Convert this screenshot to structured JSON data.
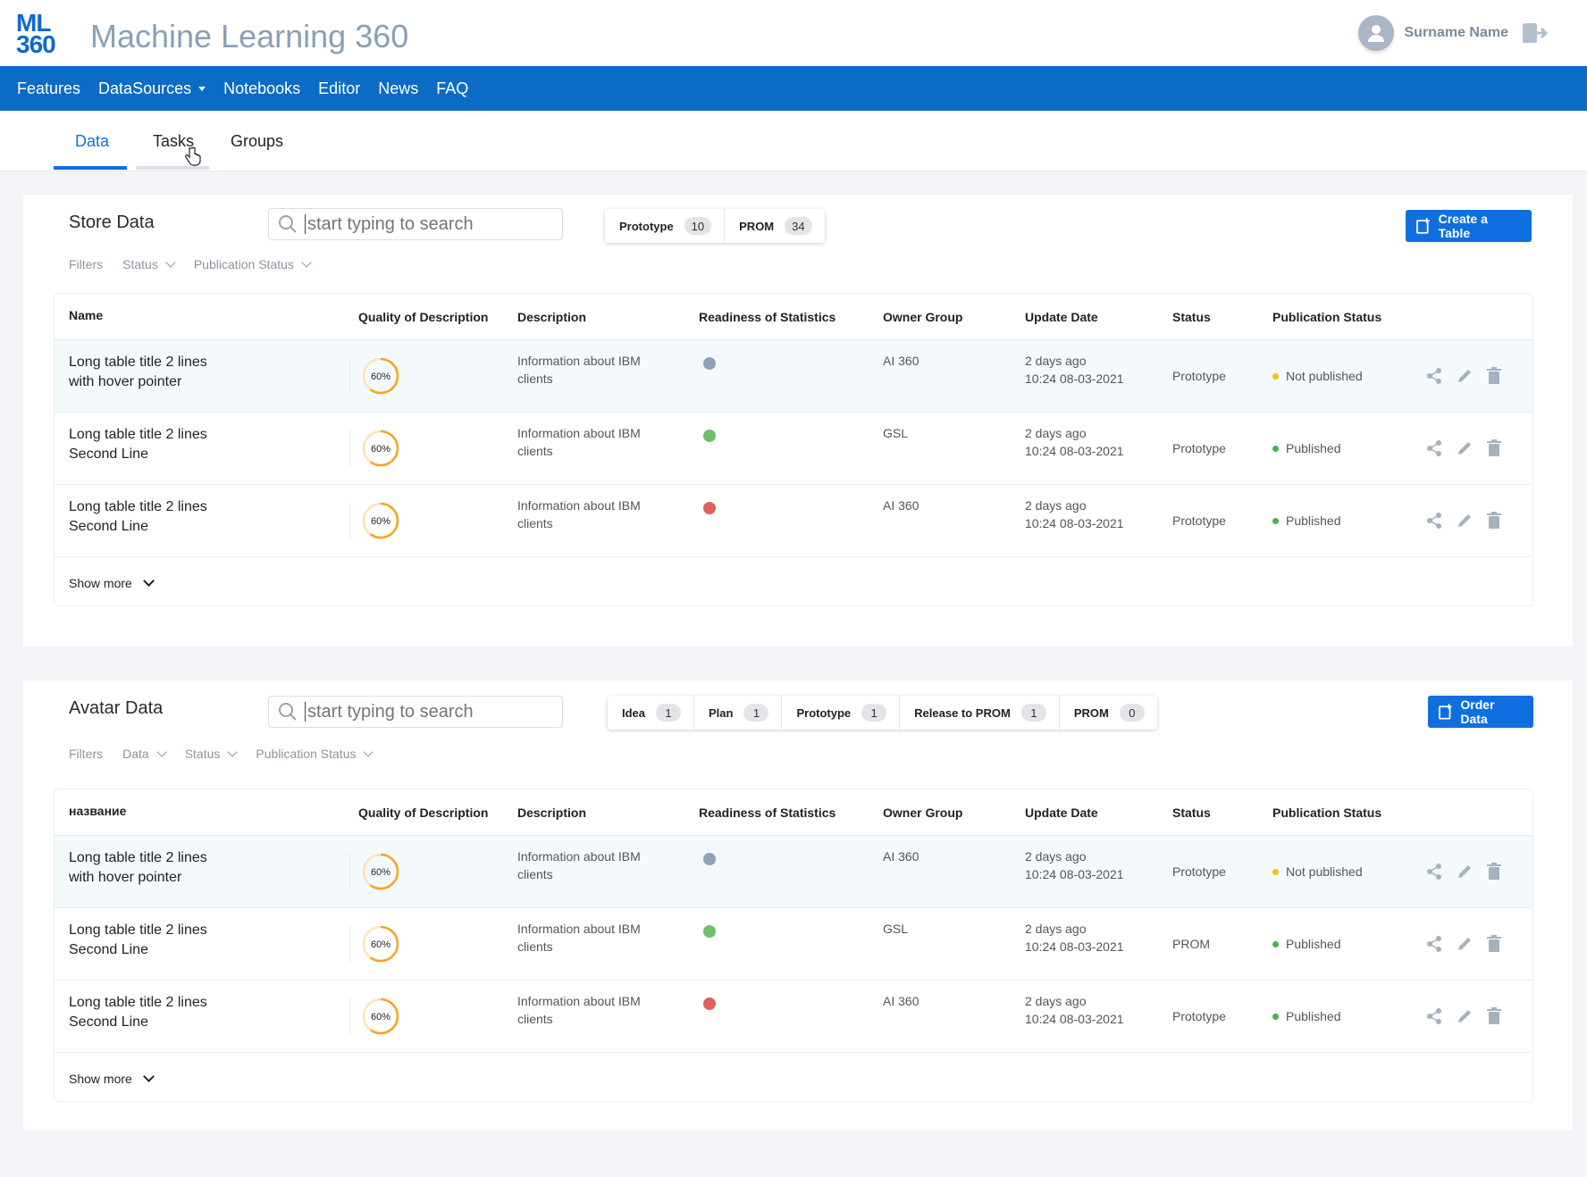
{
  "header": {
    "logo_top": "ML",
    "logo_bottom": "360",
    "app_title": "Machine Learning 360",
    "user_name": "Surname Name"
  },
  "nav": {
    "items": [
      "Features",
      "DataSources",
      "Notebooks",
      "Editor",
      "News",
      "FAQ"
    ]
  },
  "tabs": {
    "items": [
      "Data",
      "Tasks",
      "Groups"
    ],
    "active": "Data"
  },
  "colors": {
    "brand": "#0b6cc6",
    "primary_button": "#0f6fe0",
    "ring": "#f5a623",
    "dot_grey": "#8fa3b6",
    "dot_green": "#6cc06c",
    "dot_red": "#e06060",
    "pub_yellow": "#f5c518",
    "pub_green": "#4caf50"
  },
  "store": {
    "title": "Store Data",
    "search_placeholder": "start typing to search",
    "segments": [
      {
        "label": "Prototype",
        "count": "10"
      },
      {
        "label": "PROM",
        "count": "34"
      }
    ],
    "button_label": "Create a Table",
    "filters": {
      "label": "Filters",
      "status": "Status",
      "publication": "Publication Status"
    },
    "columns": [
      "Name",
      "Quality of Description",
      "Description",
      "Readiness of Statistics",
      "Owner Group",
      "Update Date",
      "Status",
      "Publication Status"
    ],
    "rows": [
      {
        "name1": "Long table title 2 lines",
        "name2": "with hover pointer",
        "quality": "60%",
        "quality_value": 0.6,
        "desc1": "Information about IBM",
        "desc2": "clients",
        "readiness": "grey",
        "owner": "AI 360",
        "date1": "2 days ago",
        "date2": "10:24  08-03-2021",
        "status": "Prototype",
        "pub": "Not published",
        "pub_color": "yellow"
      },
      {
        "name1": "Long table title 2 lines",
        "name2": "Second Line",
        "quality": "60%",
        "quality_value": 0.6,
        "desc1": "Information about IBM",
        "desc2": "clients",
        "readiness": "green",
        "owner": "GSL",
        "date1": "2 days ago",
        "date2": "10:24  08-03-2021",
        "status": "Prototype",
        "pub": "Published",
        "pub_color": "green"
      },
      {
        "name1": "Long table title 2 lines",
        "name2": "Second Line",
        "quality": "60%",
        "quality_value": 0.6,
        "desc1": "Information about IBM",
        "desc2": "clients",
        "readiness": "red",
        "owner": "AI 360",
        "date1": "2 days ago",
        "date2": "10:24  08-03-2021",
        "status": "Prototype",
        "pub": "Published",
        "pub_color": "green"
      }
    ],
    "show_more": "Show more"
  },
  "avatar": {
    "title": "Avatar Data",
    "search_placeholder": "start typing to search",
    "segments": [
      {
        "label": "Idea",
        "count": "1"
      },
      {
        "label": "Plan",
        "count": "1"
      },
      {
        "label": "Prototype",
        "count": "1"
      },
      {
        "label": "Release to PROM",
        "count": "1"
      },
      {
        "label": "PROM",
        "count": "0"
      }
    ],
    "button_label": "Order Data",
    "filters": {
      "label": "Filters",
      "data": "Data",
      "status": "Status",
      "publication": "Publication Status"
    },
    "columns": [
      "название",
      "Quality of Description",
      "Description",
      "Readiness of Statistics",
      "Owner Group",
      "Update Date",
      "Status",
      "Publication Status"
    ],
    "rows": [
      {
        "name1": "Long table title 2 lines",
        "name2": "with hover pointer",
        "quality": "60%",
        "quality_value": 0.6,
        "desc1": "Information about IBM",
        "desc2": "clients",
        "readiness": "grey",
        "owner": "AI 360",
        "date1": "2 days ago",
        "date2": "10:24  08-03-2021",
        "status": "Prototype",
        "pub": "Not published",
        "pub_color": "yellow"
      },
      {
        "name1": "Long table title 2 lines",
        "name2": "Second Line",
        "quality": "60%",
        "quality_value": 0.6,
        "desc1": "Information about IBM",
        "desc2": "clients",
        "readiness": "green",
        "owner": "GSL",
        "date1": "2 days ago",
        "date2": "10:24  08-03-2021",
        "status": "PROM",
        "pub": "Published",
        "pub_color": "green"
      },
      {
        "name1": "Long table title 2 lines",
        "name2": "Second Line",
        "quality": "60%",
        "quality_value": 0.6,
        "desc1": "Information about IBM",
        "desc2": "clients",
        "readiness": "red",
        "owner": "AI 360",
        "date1": "2 days ago",
        "date2": "10:24  08-03-2021",
        "status": "Prototype",
        "pub": "Published",
        "pub_color": "green"
      }
    ],
    "show_more": "Show more"
  }
}
